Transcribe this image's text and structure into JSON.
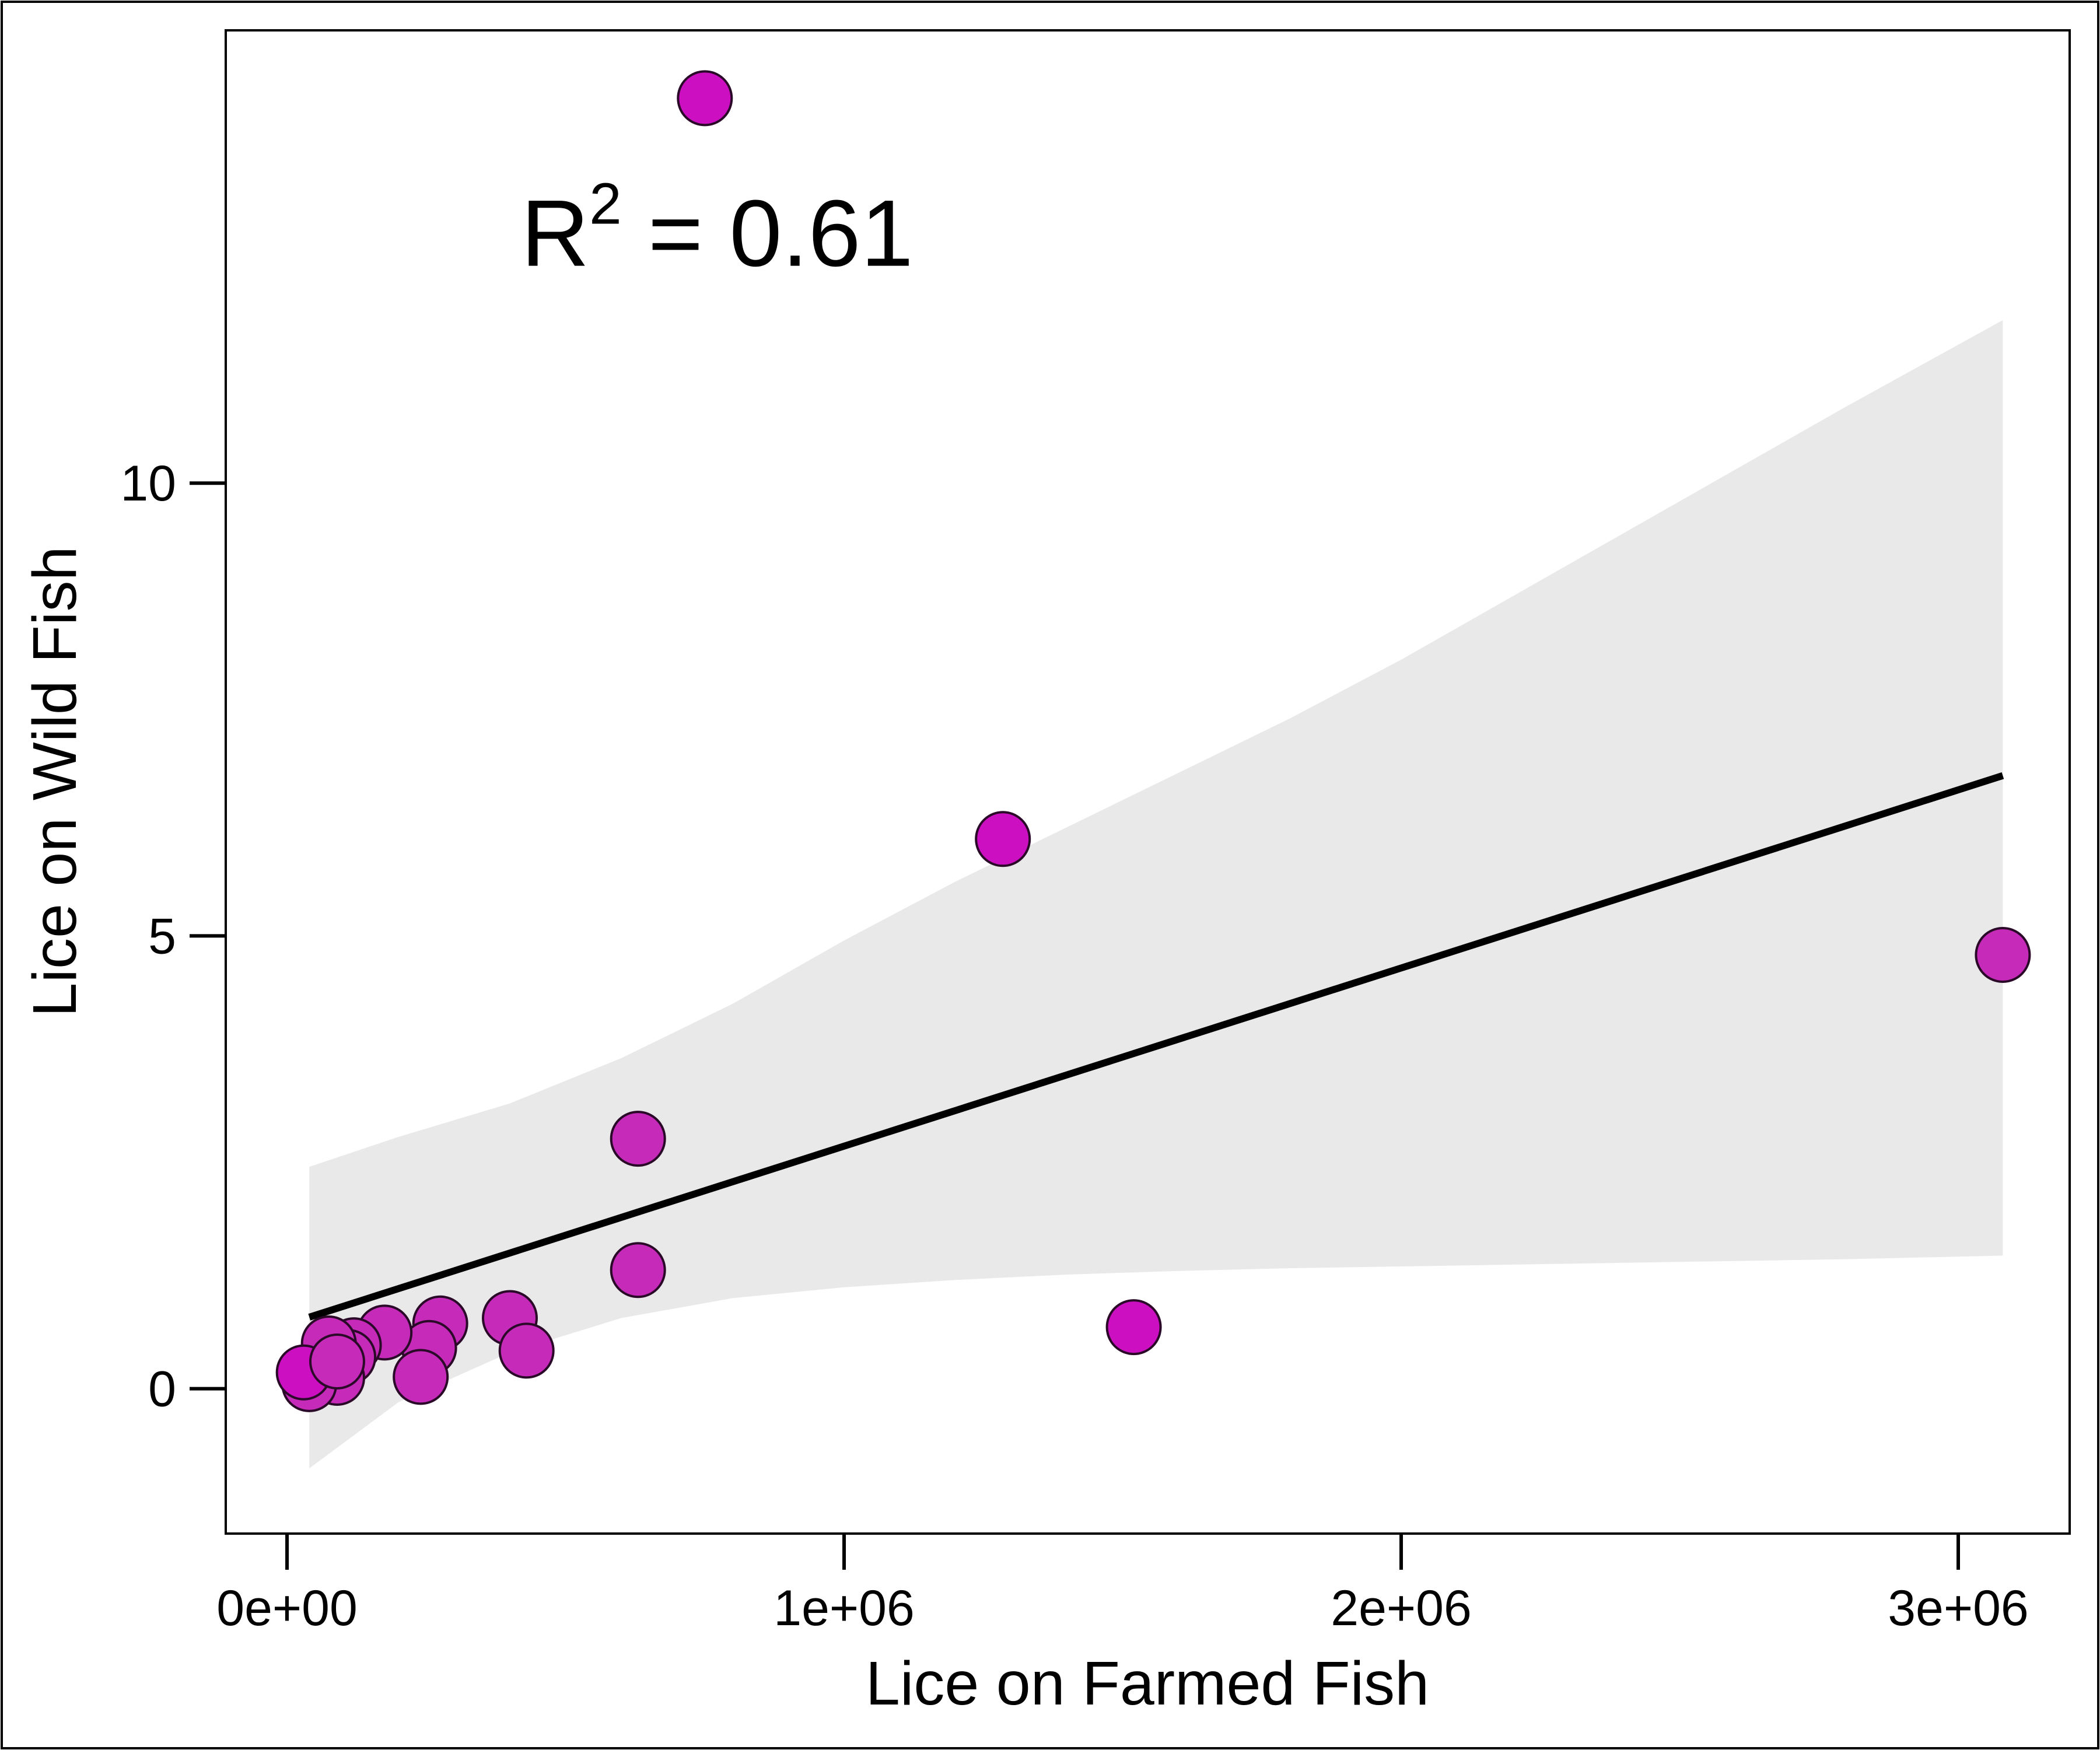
{
  "chart_data": {
    "type": "scatter",
    "title": "",
    "xlabel": "Lice on Farmed Fish",
    "ylabel": "Lice on Wild Fish",
    "xlim": [
      -110000,
      3200000
    ],
    "ylim": [
      -1.6,
      15.0
    ],
    "x_ticks": [
      0,
      1000000,
      2000000,
      3000000
    ],
    "x_tick_labels": [
      "0e+00",
      "1e+06",
      "2e+06",
      "3e+06"
    ],
    "y_ticks": [
      0,
      5,
      10
    ],
    "y_tick_labels": [
      "0",
      "5",
      "10"
    ],
    "grid": false,
    "legend": "none",
    "annotation": {
      "base": "R",
      "superscript": "2",
      "rest": " = 0.61",
      "x": 420000,
      "y": 12.4
    },
    "points": [
      {
        "x": 750000,
        "y": 14.25,
        "color": "#cc0fc0"
      },
      {
        "x": 1285000,
        "y": 6.07,
        "color": "#cc0fc0"
      },
      {
        "x": 3080000,
        "y": 4.79,
        "color": "#c52ab8"
      },
      {
        "x": 630000,
        "y": 2.76,
        "color": "#c52ab8"
      },
      {
        "x": 630000,
        "y": 1.31,
        "color": "#c52ab8"
      },
      {
        "x": 1520000,
        "y": 0.68,
        "color": "#cc0fc0"
      },
      {
        "x": 400000,
        "y": 0.78,
        "color": "#c52ab8"
      },
      {
        "x": 430000,
        "y": 0.42,
        "color": "#c52ab8"
      },
      {
        "x": 275000,
        "y": 0.72,
        "color": "#c52ab8"
      },
      {
        "x": 255000,
        "y": 0.45,
        "color": "#c52ab8"
      },
      {
        "x": 240000,
        "y": 0.13,
        "color": "#c52ab8"
      },
      {
        "x": 175000,
        "y": 0.62,
        "color": "#c52ab8"
      },
      {
        "x": 120000,
        "y": 0.48,
        "color": "#c52ab8"
      },
      {
        "x": 110000,
        "y": 0.35,
        "color": "#c52ab8"
      },
      {
        "x": 75000,
        "y": 0.5,
        "color": "#c52ab8"
      },
      {
        "x": 90000,
        "y": 0.12,
        "color": "#c52ab8"
      },
      {
        "x": 40000,
        "y": 0.05,
        "color": "#c52ab8"
      },
      {
        "x": 30000,
        "y": 0.18,
        "color": "#cc0fc0"
      },
      {
        "x": 90000,
        "y": 0.3,
        "color": "#c52ab8"
      }
    ],
    "fit_line": {
      "x": [
        40000,
        3080000
      ],
      "y": [
        0.79,
        6.77
      ],
      "color": "#000000"
    },
    "confidence_band": {
      "color": "#e9e9e9",
      "x": [
        40000,
        200000,
        400000,
        600000,
        800000,
        1000000,
        1200000,
        1400000,
        1600000,
        1800000,
        2000000,
        2200000,
        2400000,
        2600000,
        2800000,
        3080000
      ],
      "upper": [
        2.45,
        2.78,
        3.15,
        3.65,
        4.25,
        4.95,
        5.6,
        6.2,
        6.8,
        7.4,
        8.05,
        8.75,
        9.45,
        10.15,
        10.85,
        11.8
      ],
      "lower": [
        -0.88,
        -0.15,
        0.4,
        0.78,
        1.0,
        1.12,
        1.2,
        1.26,
        1.3,
        1.33,
        1.35,
        1.37,
        1.39,
        1.41,
        1.43,
        1.47
      ]
    }
  }
}
